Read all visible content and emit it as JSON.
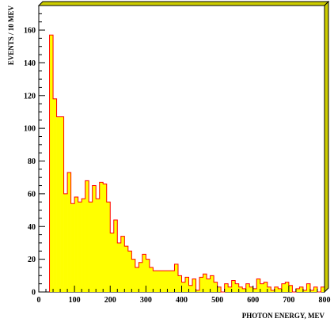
{
  "chart_data": {
    "type": "bar",
    "title": "",
    "xlabel": "PHOTON ENERGY, MEV",
    "ylabel": "EVENTS / 10 MEV",
    "xlim": [
      0,
      800
    ],
    "ylim": [
      0,
      175
    ],
    "grid": false,
    "x_ticks": [
      0,
      100,
      200,
      300,
      400,
      500,
      600,
      700,
      800
    ],
    "y_ticks": [
      0,
      20,
      40,
      60,
      80,
      100,
      120,
      140,
      160
    ],
    "bin_width": 10,
    "bin_starts": [
      30,
      40,
      50,
      60,
      70,
      80,
      90,
      100,
      110,
      120,
      130,
      140,
      150,
      160,
      170,
      180,
      190,
      200,
      210,
      220,
      230,
      240,
      250,
      260,
      270,
      280,
      290,
      300,
      310,
      320,
      330,
      340,
      350,
      360,
      370,
      380,
      390,
      400,
      410,
      420,
      430,
      440,
      450,
      460,
      470,
      480,
      490,
      500,
      510,
      520,
      530,
      540,
      550,
      560,
      570,
      580,
      590,
      600,
      610,
      620,
      630,
      640,
      650,
      660,
      670,
      680,
      690,
      700,
      710,
      720,
      730,
      740,
      750,
      760,
      770,
      780,
      790
    ],
    "values": [
      157,
      118,
      107,
      107,
      60,
      73,
      54,
      58,
      55,
      57,
      68,
      55,
      65,
      57,
      67,
      66,
      55,
      36,
      44,
      30,
      34,
      28,
      25,
      20,
      15,
      18,
      23,
      20,
      15,
      13,
      13,
      13,
      13,
      13,
      13,
      17,
      10,
      6,
      9,
      4,
      8,
      1,
      9,
      11,
      8,
      10,
      6,
      3,
      0,
      5,
      3,
      7,
      5,
      3,
      2,
      5,
      3,
      2,
      8,
      5,
      6,
      3,
      1,
      3,
      2,
      5,
      6,
      4,
      0,
      2,
      3,
      1,
      5,
      1,
      3,
      0,
      3
    ],
    "fill_color": "#ffff00",
    "line_color": "#ff0000",
    "frame_shadow_color": "#cccc00"
  }
}
